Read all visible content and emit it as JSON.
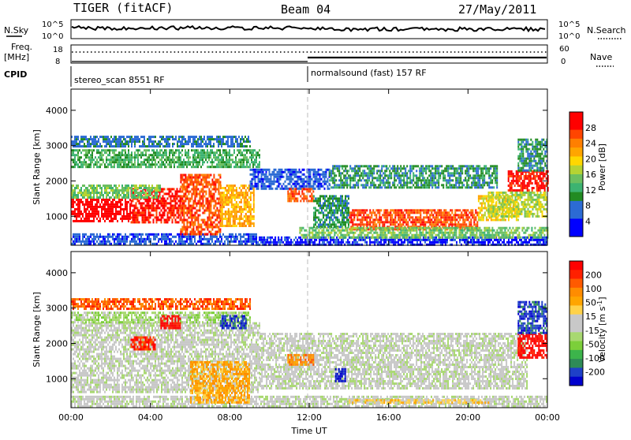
{
  "header": {
    "title": "TIGER (fitACF)",
    "beam": "Beam 04",
    "date": "27/May/2011"
  },
  "strips": {
    "nsky_label": "N.Sky",
    "nsky_ticks": [
      "10^5",
      "10^0"
    ],
    "nsearch_label": "N.Search",
    "nsearch_ticks": [
      "10^5",
      "10^0"
    ],
    "freq_label_1": "Freq.",
    "freq_label_2": "[MHz]",
    "freq_ticks": [
      "18",
      "8"
    ],
    "nave_label": "Nave",
    "nave_ticks": [
      "60",
      "0"
    ],
    "cpid_label": "CPID",
    "cpid_segments": [
      {
        "label": "stereo_scan 8551 RF",
        "start_hour": 0
      },
      {
        "label": "normalsound (fast) 157 RF",
        "start_hour": 12
      }
    ]
  },
  "chart_data": [
    {
      "type": "heatmap",
      "title": "",
      "xlabel": "Time UT",
      "ylabel": "Slant Range [km]",
      "x_ticks": [
        "00:00",
        "04:00",
        "08:00",
        "12:00",
        "16:00",
        "20:00",
        "00:00"
      ],
      "x_range_hours": [
        0,
        24
      ],
      "y_ticks": [
        1000,
        2000,
        3000,
        4000
      ],
      "ylim": [
        180,
        4600
      ],
      "colorbar": {
        "label": "Power [dB]",
        "ticks": [
          "28",
          "24",
          "20",
          "16",
          "12",
          "8",
          "4"
        ],
        "colors": [
          "#0000ff",
          "#0000ff",
          "#2c6bd4",
          "#2c6bd4",
          "#228b22",
          "#3cb371",
          "#6cbf60",
          "#b5d333",
          "#ffd700",
          "#ffa500",
          "#ff7f00",
          "#ff4500",
          "#ff0000",
          "#ff0000"
        ]
      },
      "regions": [
        {
          "t": [
            0.0,
            9.3
          ],
          "r": [
            190,
            520
          ],
          "level": 2
        },
        {
          "t": [
            9.3,
            24.0
          ],
          "r": [
            190,
            430
          ],
          "level": 1
        },
        {
          "t": [
            0.0,
            3.0
          ],
          "r": [
            850,
            1500
          ],
          "level": 13
        },
        {
          "t": [
            3.0,
            5.5
          ],
          "r": [
            800,
            1800
          ],
          "level": 12
        },
        {
          "t": [
            5.5,
            7.5
          ],
          "r": [
            500,
            2200
          ],
          "level": 11
        },
        {
          "t": [
            7.5,
            9.2
          ],
          "r": [
            700,
            1900
          ],
          "level": 9
        },
        {
          "t": [
            0.0,
            4.5
          ],
          "r": [
            1500,
            1900
          ],
          "level": 6
        },
        {
          "t": [
            0.0,
            9.5
          ],
          "r": [
            2400,
            2900
          ],
          "level": 5
        },
        {
          "t": [
            0.0,
            9.0
          ],
          "r": [
            2950,
            3280
          ],
          "level": 3
        },
        {
          "t": [
            9.0,
            13.0
          ],
          "r": [
            1750,
            2350
          ],
          "level": 2
        },
        {
          "t": [
            10.9,
            12.2
          ],
          "r": [
            1400,
            1800
          ],
          "level": 11
        },
        {
          "t": [
            13.0,
            21.5
          ],
          "r": [
            1800,
            2450
          ],
          "level": 4
        },
        {
          "t": [
            14.0,
            20.5
          ],
          "r": [
            600,
            1200
          ],
          "level": 11
        },
        {
          "t": [
            12.2,
            14.0
          ],
          "r": [
            700,
            1600
          ],
          "level": 4
        },
        {
          "t": [
            20.5,
            22.5
          ],
          "r": [
            900,
            1600
          ],
          "level": 8
        },
        {
          "t": [
            22.0,
            24.0
          ],
          "r": [
            1700,
            2300
          ],
          "level": 12
        },
        {
          "t": [
            22.5,
            24.0
          ],
          "r": [
            2300,
            3200
          ],
          "level": 4
        },
        {
          "t": [
            21.0,
            24.0
          ],
          "r": [
            1000,
            1700
          ],
          "level": 7
        },
        {
          "t": [
            11.5,
            24.0
          ],
          "r": [
            430,
            700
          ],
          "level": 6
        }
      ]
    },
    {
      "type": "heatmap",
      "title": "",
      "xlabel": "Time UT",
      "ylabel": "Slant Range [km]",
      "x_ticks": [
        "00:00",
        "04:00",
        "08:00",
        "12:00",
        "16:00",
        "20:00",
        "00:00"
      ],
      "x_range_hours": [
        0,
        24
      ],
      "y_ticks": [
        1000,
        2000,
        3000,
        4000
      ],
      "ylim": [
        180,
        4600
      ],
      "colorbar": {
        "label": "Velocity [m s^-1]",
        "ticks": [
          "200",
          "100",
          "50",
          "15",
          "-15",
          "-50",
          "-100",
          "-200"
        ],
        "colors": [
          "#0000cd",
          "#1e40c8",
          "#2e8b57",
          "#3cb44b",
          "#7ccf3a",
          "#a8d870",
          "#c8c8c8",
          "#c8c8c8",
          "#ffd24a",
          "#ffa500",
          "#ff8c00",
          "#ff5a00",
          "#ff2000",
          "#ff0000"
        ]
      },
      "regions": [
        {
          "t": [
            0.0,
            24.0
          ],
          "r": [
            190,
            520
          ],
          "level": 6
        },
        {
          "t": [
            0.0,
            9.5
          ],
          "r": [
            600,
            2600
          ],
          "level": 6
        },
        {
          "t": [
            9.5,
            23.0
          ],
          "r": [
            700,
            2300
          ],
          "level": 6
        },
        {
          "t": [
            0.0,
            9.0
          ],
          "r": [
            2600,
            2900
          ],
          "level": 5
        },
        {
          "t": [
            0.0,
            9.0
          ],
          "r": [
            2950,
            3280
          ],
          "level": 11
        },
        {
          "t": [
            3.0,
            4.2
          ],
          "r": [
            1800,
            2200
          ],
          "level": 12
        },
        {
          "t": [
            4.5,
            5.5
          ],
          "r": [
            2400,
            2800
          ],
          "level": 13
        },
        {
          "t": [
            7.5,
            8.8
          ],
          "r": [
            2400,
            2800
          ],
          "level": 1
        },
        {
          "t": [
            10.9,
            12.2
          ],
          "r": [
            1400,
            1700
          ],
          "level": 10
        },
        {
          "t": [
            13.3,
            13.8
          ],
          "r": [
            900,
            1300
          ],
          "level": 0
        },
        {
          "t": [
            22.5,
            24.0
          ],
          "r": [
            1600,
            2300
          ],
          "level": 13
        },
        {
          "t": [
            22.5,
            24.0
          ],
          "r": [
            2300,
            3200
          ],
          "level": 1
        },
        {
          "t": [
            6.0,
            9.0
          ],
          "r": [
            300,
            1500
          ],
          "level": 9
        },
        {
          "t": [
            14.0,
            21.0
          ],
          "r": [
            300,
            420
          ],
          "level": 8
        }
      ]
    }
  ]
}
